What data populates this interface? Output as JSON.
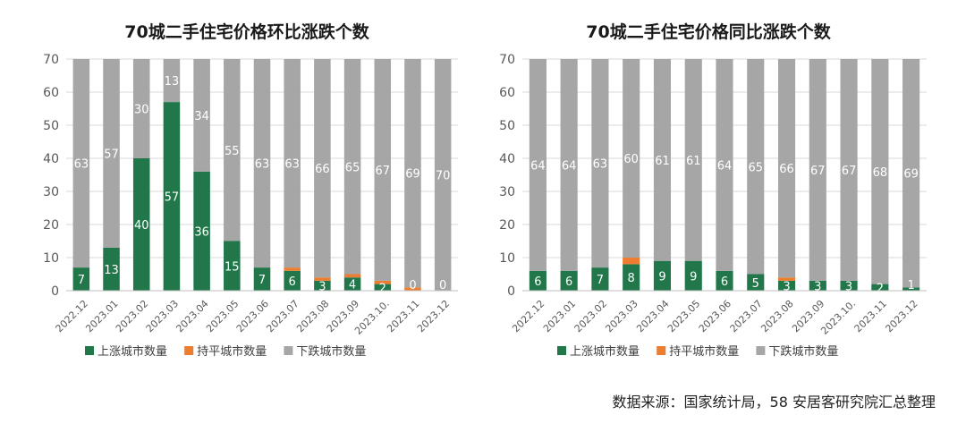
{
  "colors": {
    "up": "#21774A",
    "flat": "#ED7D31",
    "down": "#A6A6A6",
    "grid": "#D9D9D9"
  },
  "source_text": "数据来源：国家统计局，58 安居客研究院汇总整理",
  "chart_data": [
    {
      "type": "bar",
      "stacked": true,
      "title": "70城二手住宅价格环比涨跌个数",
      "categories": [
        "2022.12",
        "2023.01",
        "2023.02",
        "2023.03",
        "2023.04",
        "2023.05",
        "2023.06",
        "2023.07",
        "2023.08",
        "2023.09",
        "2023.10.",
        "2023.11",
        "2023.12"
      ],
      "series": [
        {
          "name": "上涨城市数量",
          "values": [
            7,
            13,
            40,
            57,
            36,
            15,
            7,
            6,
            3,
            4,
            2,
            0,
            0
          ]
        },
        {
          "name": "持平城市数量",
          "values": [
            0,
            0,
            0,
            0,
            0,
            0,
            0,
            1,
            1,
            1,
            1,
            1,
            0
          ]
        },
        {
          "name": "下跌城市数量",
          "values": [
            63,
            57,
            30,
            13,
            34,
            55,
            63,
            63,
            66,
            65,
            67,
            69,
            70
          ]
        }
      ],
      "up_labels": [
        "7",
        "13",
        "40",
        "57",
        "36",
        "15",
        "7",
        "6",
        "3",
        "4",
        "2",
        "0",
        "0"
      ],
      "down_labels": [
        "63",
        "57",
        "30",
        "13",
        "34",
        "55",
        "63",
        "63",
        "66",
        "65",
        "67",
        "69",
        "70"
      ],
      "ylim": [
        0,
        70
      ],
      "yticks": [
        "0",
        "10",
        "20",
        "30",
        "40",
        "50",
        "60",
        "70"
      ],
      "grid": true,
      "legend": "bottom"
    },
    {
      "type": "bar",
      "stacked": true,
      "title": "70城二手住宅价格同比涨跌个数",
      "categories": [
        "2022.12",
        "2023.01",
        "2023.02",
        "2023.03",
        "2023.04",
        "2023.05",
        "2023.06",
        "2023.07",
        "2023.08",
        "2023.09",
        "2023.10.",
        "2023.11",
        "2023.12"
      ],
      "series": [
        {
          "name": "上涨城市数量",
          "values": [
            6,
            6,
            7,
            8,
            9,
            9,
            6,
            5,
            3,
            3,
            3,
            2,
            1
          ]
        },
        {
          "name": "持平城市数量",
          "values": [
            0,
            0,
            0,
            2,
            0,
            0,
            0,
            0,
            1,
            0,
            0,
            0,
            0
          ]
        },
        {
          "name": "下跌城市数量",
          "values": [
            64,
            64,
            63,
            60,
            61,
            61,
            64,
            65,
            66,
            67,
            67,
            68,
            69
          ]
        }
      ],
      "up_labels": [
        "6",
        "6",
        "7",
        "8",
        "9",
        "9",
        "6",
        "5",
        "3",
        "3",
        "3",
        "2",
        "1"
      ],
      "down_labels": [
        "64",
        "64",
        "63",
        "60",
        "61",
        "61",
        "64",
        "65",
        "66",
        "67",
        "67",
        "68",
        "69"
      ],
      "ylim": [
        0,
        70
      ],
      "yticks": [
        "0",
        "10",
        "20",
        "30",
        "40",
        "50",
        "60",
        "70"
      ],
      "grid": true,
      "legend": "bottom"
    }
  ]
}
